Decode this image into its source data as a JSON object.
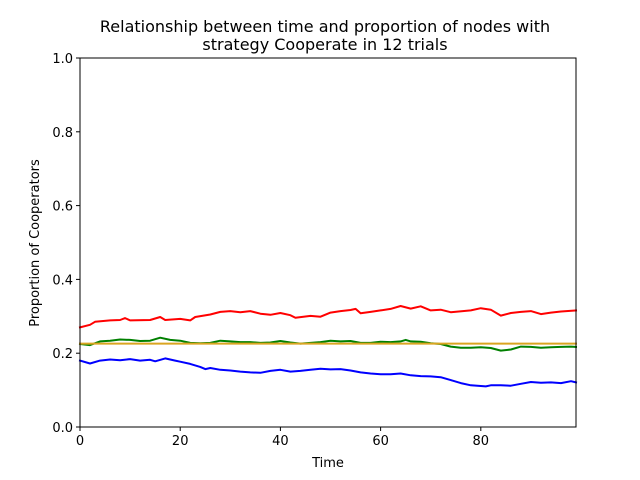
{
  "chart_data": {
    "type": "line",
    "title_lines": [
      "Relationship between time and proportion of nodes with",
      "strategy Cooperate in 12 trials"
    ],
    "xlabel": "Time",
    "ylabel": "Proportion of Cooperators",
    "xlim": [
      0,
      99
    ],
    "ylim": [
      0.0,
      1.0
    ],
    "xticks": [
      "0",
      "20",
      "40",
      "60",
      "80"
    ],
    "xtick_values": [
      0,
      20,
      40,
      60,
      80
    ],
    "yticks": [
      "0.0",
      "0.2",
      "0.4",
      "0.6",
      "0.8",
      "1.0"
    ],
    "ytick_values": [
      0.0,
      0.2,
      0.4,
      0.6,
      0.8,
      1.0
    ],
    "grid": false,
    "legend": null,
    "series": [
      {
        "color": "#ff0000",
        "points": [
          [
            0,
            0.27
          ],
          [
            2,
            0.277
          ],
          [
            3,
            0.285
          ],
          [
            6,
            0.289
          ],
          [
            8,
            0.29
          ],
          [
            9,
            0.295
          ],
          [
            10,
            0.289
          ],
          [
            14,
            0.29
          ],
          [
            16,
            0.298
          ],
          [
            17,
            0.29
          ],
          [
            20,
            0.293
          ],
          [
            22,
            0.289
          ],
          [
            23,
            0.298
          ],
          [
            26,
            0.305
          ],
          [
            28,
            0.312
          ],
          [
            30,
            0.314
          ],
          [
            32,
            0.311
          ],
          [
            34,
            0.314
          ],
          [
            36,
            0.307
          ],
          [
            38,
            0.304
          ],
          [
            40,
            0.309
          ],
          [
            42,
            0.303
          ],
          [
            43,
            0.296
          ],
          [
            46,
            0.301
          ],
          [
            48,
            0.299
          ],
          [
            50,
            0.31
          ],
          [
            52,
            0.314
          ],
          [
            54,
            0.317
          ],
          [
            55,
            0.32
          ],
          [
            56,
            0.308
          ],
          [
            58,
            0.312
          ],
          [
            60,
            0.316
          ],
          [
            62,
            0.32
          ],
          [
            64,
            0.328
          ],
          [
            66,
            0.321
          ],
          [
            68,
            0.327
          ],
          [
            70,
            0.316
          ],
          [
            72,
            0.318
          ],
          [
            74,
            0.311
          ],
          [
            78,
            0.316
          ],
          [
            80,
            0.322
          ],
          [
            82,
            0.318
          ],
          [
            84,
            0.302
          ],
          [
            86,
            0.309
          ],
          [
            88,
            0.312
          ],
          [
            90,
            0.314
          ],
          [
            92,
            0.306
          ],
          [
            94,
            0.31
          ],
          [
            96,
            0.313
          ],
          [
            99,
            0.316
          ]
        ]
      },
      {
        "color": "#008000",
        "points": [
          [
            0,
            0.225
          ],
          [
            2,
            0.222
          ],
          [
            4,
            0.232
          ],
          [
            6,
            0.234
          ],
          [
            8,
            0.237
          ],
          [
            10,
            0.236
          ],
          [
            12,
            0.233
          ],
          [
            14,
            0.234
          ],
          [
            16,
            0.242
          ],
          [
            18,
            0.236
          ],
          [
            20,
            0.234
          ],
          [
            22,
            0.228
          ],
          [
            24,
            0.227
          ],
          [
            26,
            0.228
          ],
          [
            28,
            0.234
          ],
          [
            30,
            0.232
          ],
          [
            32,
            0.23
          ],
          [
            34,
            0.23
          ],
          [
            36,
            0.228
          ],
          [
            38,
            0.229
          ],
          [
            40,
            0.233
          ],
          [
            42,
            0.229
          ],
          [
            44,
            0.226
          ],
          [
            46,
            0.228
          ],
          [
            48,
            0.23
          ],
          [
            50,
            0.234
          ],
          [
            52,
            0.232
          ],
          [
            54,
            0.233
          ],
          [
            56,
            0.228
          ],
          [
            58,
            0.228
          ],
          [
            60,
            0.231
          ],
          [
            62,
            0.23
          ],
          [
            64,
            0.232
          ],
          [
            65,
            0.236
          ],
          [
            66,
            0.232
          ],
          [
            68,
            0.231
          ],
          [
            70,
            0.227
          ],
          [
            72,
            0.225
          ],
          [
            74,
            0.218
          ],
          [
            76,
            0.215
          ],
          [
            78,
            0.215
          ],
          [
            80,
            0.216
          ],
          [
            82,
            0.214
          ],
          [
            84,
            0.207
          ],
          [
            86,
            0.21
          ],
          [
            88,
            0.218
          ],
          [
            90,
            0.217
          ],
          [
            92,
            0.215
          ],
          [
            94,
            0.216
          ],
          [
            96,
            0.217
          ],
          [
            98,
            0.218
          ],
          [
            99,
            0.217
          ]
        ]
      },
      {
        "color": "#daa520",
        "points": [
          [
            0,
            0.226
          ],
          [
            99,
            0.226
          ]
        ]
      },
      {
        "color": "#0000ff",
        "points": [
          [
            0,
            0.18
          ],
          [
            2,
            0.172
          ],
          [
            4,
            0.18
          ],
          [
            6,
            0.183
          ],
          [
            8,
            0.181
          ],
          [
            10,
            0.184
          ],
          [
            12,
            0.18
          ],
          [
            14,
            0.182
          ],
          [
            15,
            0.178
          ],
          [
            17,
            0.186
          ],
          [
            19,
            0.18
          ],
          [
            20,
            0.177
          ],
          [
            22,
            0.171
          ],
          [
            24,
            0.163
          ],
          [
            25,
            0.157
          ],
          [
            26,
            0.16
          ],
          [
            28,
            0.155
          ],
          [
            30,
            0.153
          ],
          [
            32,
            0.15
          ],
          [
            34,
            0.148
          ],
          [
            36,
            0.147
          ],
          [
            38,
            0.152
          ],
          [
            40,
            0.155
          ],
          [
            42,
            0.15
          ],
          [
            44,
            0.152
          ],
          [
            46,
            0.155
          ],
          [
            48,
            0.158
          ],
          [
            50,
            0.156
          ],
          [
            52,
            0.157
          ],
          [
            54,
            0.153
          ],
          [
            56,
            0.148
          ],
          [
            58,
            0.145
          ],
          [
            60,
            0.143
          ],
          [
            62,
            0.143
          ],
          [
            64,
            0.145
          ],
          [
            66,
            0.14
          ],
          [
            68,
            0.138
          ],
          [
            70,
            0.137
          ],
          [
            72,
            0.135
          ],
          [
            74,
            0.127
          ],
          [
            76,
            0.119
          ],
          [
            78,
            0.113
          ],
          [
            80,
            0.111
          ],
          [
            81,
            0.11
          ],
          [
            82,
            0.113
          ],
          [
            84,
            0.113
          ],
          [
            86,
            0.112
          ],
          [
            88,
            0.117
          ],
          [
            90,
            0.122
          ],
          [
            92,
            0.12
          ],
          [
            94,
            0.121
          ],
          [
            96,
            0.119
          ],
          [
            98,
            0.124
          ],
          [
            99,
            0.121
          ]
        ]
      }
    ]
  }
}
